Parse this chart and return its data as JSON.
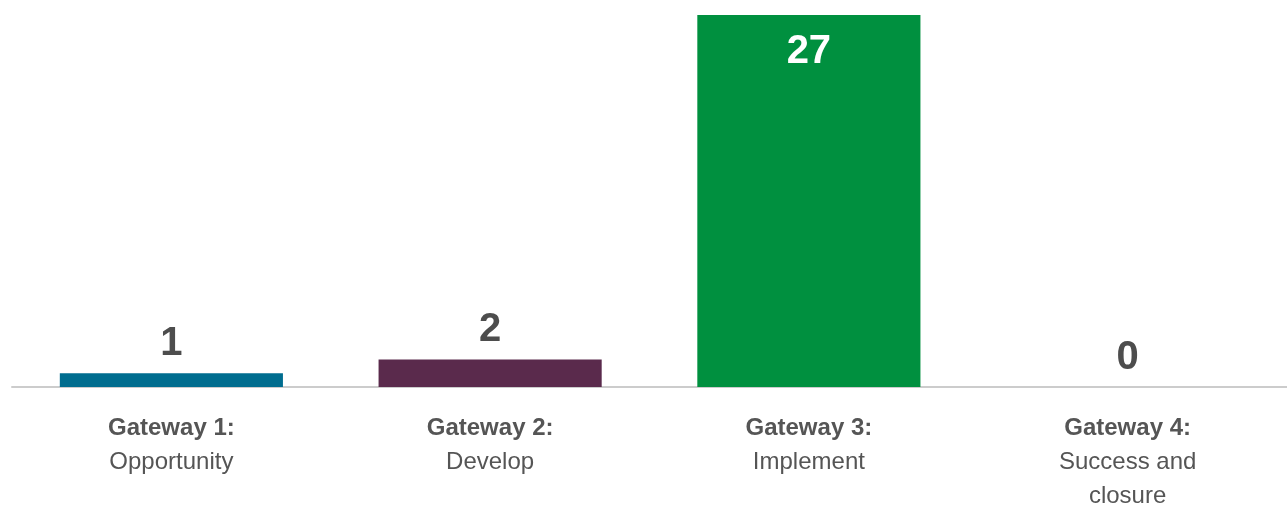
{
  "chart_data": {
    "type": "bar",
    "categories": [
      "Gateway 1:\nOpportunity",
      "Gateway 2:\nDevelop",
      "Gateway 3:\nImplement",
      "Gateway 4:\nSuccess and\nclosure"
    ],
    "values": [
      1,
      2,
      27,
      0
    ],
    "colors": [
      "#006d8f",
      "#5a2a4c",
      "#00903f",
      "#7f7f7f"
    ],
    "data_labels": true
  }
}
